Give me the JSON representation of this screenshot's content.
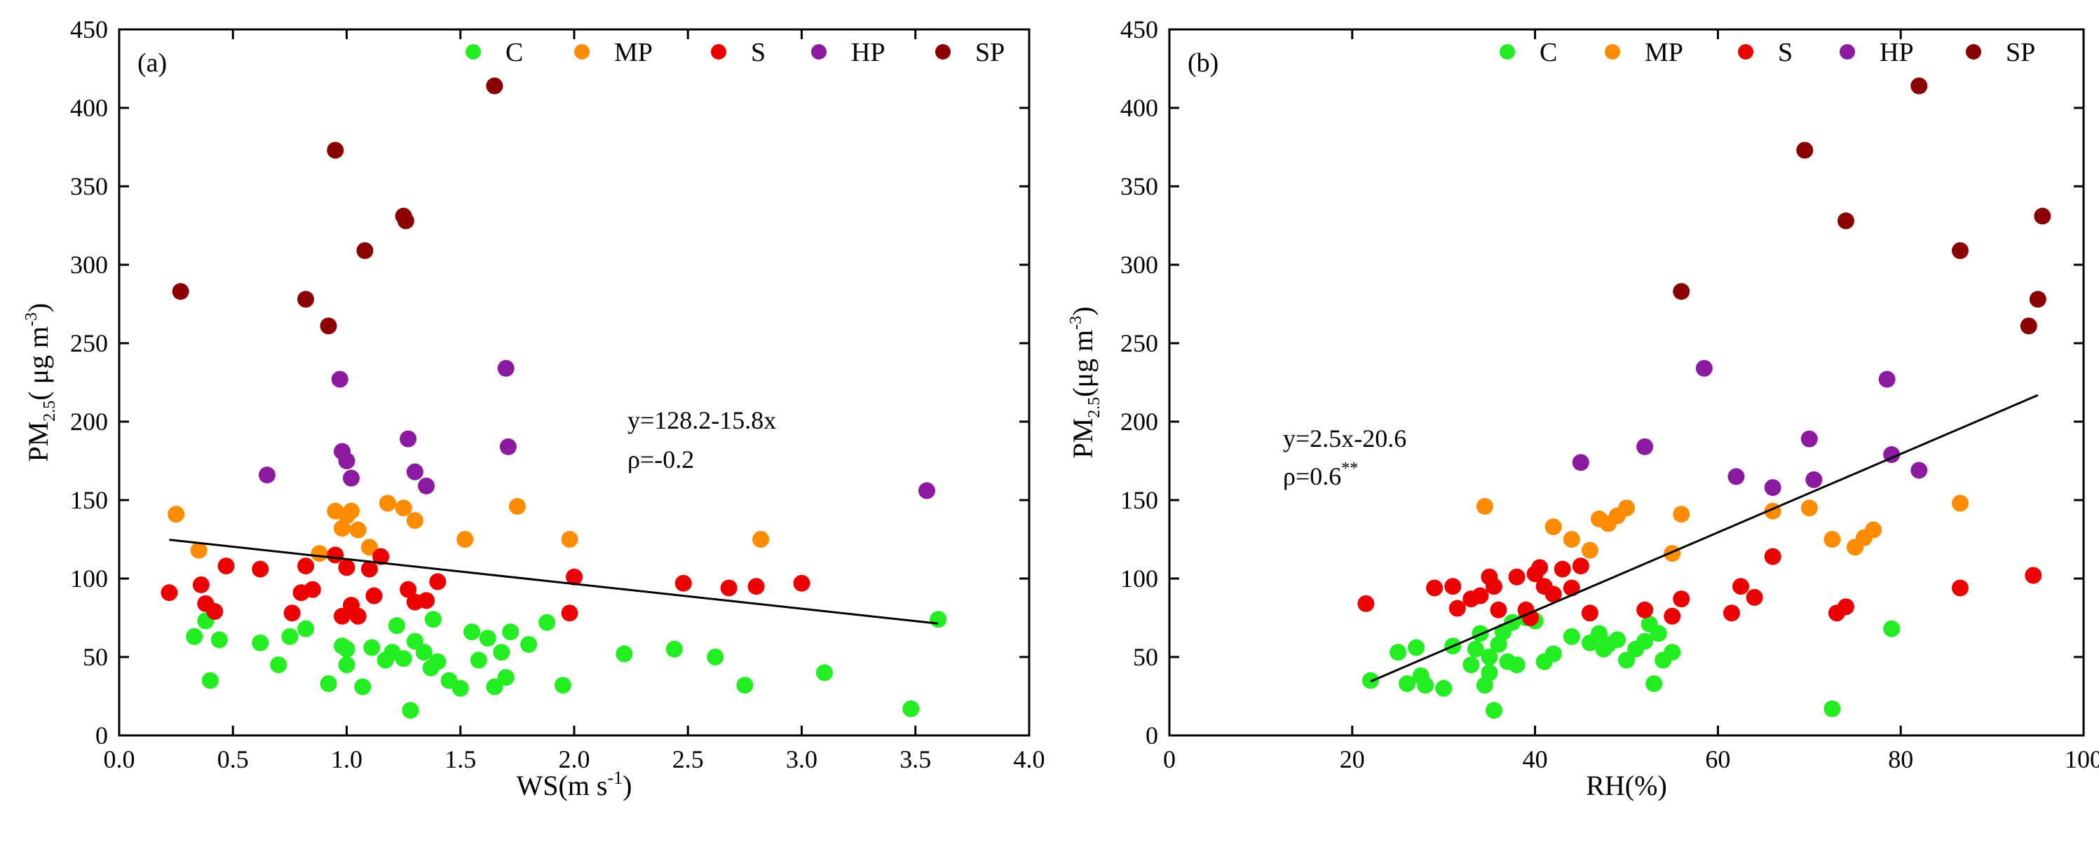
{
  "legend_colors": {
    "C": "#22ee22",
    "MP": "#ff8c00",
    "S": "#ee0000",
    "HP": "#8b1aa0",
    "SP": "#8b0000"
  },
  "chart_data": [
    {
      "type": "scatter",
      "panel_label": "(a)",
      "xlabel": "WS(m s",
      "xlabel_sup": "-1",
      "xlabel_tail": ")",
      "ylabel": "PM",
      "ylabel_sub": "2.5",
      "ylabel_mid": "( μg m",
      "ylabel_sup": "-3",
      "ylabel_tail": ")",
      "xlim": [
        0,
        4
      ],
      "ylim": [
        0,
        450
      ],
      "xticks": [
        "0.0",
        "0.5",
        "1.0",
        "1.5",
        "2.0",
        "2.5",
        "3.0",
        "3.5",
        "4.0"
      ],
      "xtick_values": [
        0,
        0.5,
        1,
        1.5,
        2,
        2.5,
        3,
        3.5,
        4
      ],
      "yticks": [
        "0",
        "50",
        "100",
        "150",
        "200",
        "250",
        "300",
        "350",
        "400",
        "450"
      ],
      "ytick_values": [
        0,
        50,
        100,
        150,
        200,
        250,
        300,
        350,
        400,
        450
      ],
      "legend": [
        "C",
        "MP",
        "S",
        "HP",
        "SP"
      ],
      "annotation": {
        "equation": "y=128.2-15.8x",
        "rho": "ρ=-0.2",
        "rho_sup": ""
      },
      "fit_line": {
        "x": [
          0.22,
          3.6
        ],
        "y": [
          124.7,
          71.3
        ]
      },
      "series": [
        {
          "name": "C",
          "x": [
            0.33,
            0.38,
            0.4,
            0.44,
            0.62,
            0.7,
            0.75,
            0.82,
            0.92,
            0.98,
            1.0,
            1.0,
            1.07,
            1.11,
            1.17,
            1.2,
            1.22,
            1.25,
            1.28,
            1.3,
            1.34,
            1.37,
            1.38,
            1.4,
            1.45,
            1.5,
            1.55,
            1.58,
            1.62,
            1.65,
            1.68,
            1.7,
            1.72,
            1.8,
            1.88,
            1.95,
            2.22,
            2.44,
            2.62,
            2.75,
            3.1,
            3.48,
            3.6
          ],
          "y": [
            63,
            73,
            35,
            61,
            59,
            45,
            63,
            68,
            33,
            57,
            55,
            45,
            31,
            56,
            48,
            53,
            70,
            49,
            16,
            60,
            53,
            43,
            74,
            47,
            35,
            30,
            66,
            48,
            62,
            31,
            53,
            37,
            66,
            58,
            72,
            32,
            52,
            55,
            50,
            32,
            40,
            17,
            74
          ]
        },
        {
          "name": "MP",
          "x": [
            0.25,
            0.35,
            0.88,
            0.95,
            0.98,
            1.0,
            1.02,
            1.05,
            1.1,
            1.18,
            1.25,
            1.3,
            1.52,
            1.75,
            1.98,
            2.82
          ],
          "y": [
            141,
            118,
            116,
            143,
            132,
            140,
            143,
            131,
            120,
            148,
            145,
            137,
            125,
            146,
            125,
            125
          ]
        },
        {
          "name": "S",
          "x": [
            0.22,
            0.36,
            0.38,
            0.42,
            0.47,
            0.62,
            0.76,
            0.8,
            0.82,
            0.85,
            0.95,
            0.98,
            1.0,
            1.02,
            1.05,
            1.1,
            1.12,
            1.15,
            1.27,
            1.3,
            1.35,
            1.4,
            1.98,
            2.0,
            2.48,
            2.68,
            2.8,
            3.0
          ],
          "y": [
            91,
            96,
            84,
            79,
            108,
            106,
            78,
            91,
            108,
            93,
            115,
            76,
            107,
            83,
            76,
            106,
            89,
            114,
            93,
            85,
            86,
            98,
            78,
            101,
            97,
            94,
            95,
            97
          ]
        },
        {
          "name": "HP",
          "x": [
            0.65,
            0.97,
            0.98,
            1.0,
            1.02,
            1.27,
            1.3,
            1.35,
            1.7,
            1.71,
            3.55
          ],
          "y": [
            166,
            227,
            181,
            175,
            164,
            189,
            168,
            159,
            234,
            184,
            156
          ]
        },
        {
          "name": "SP",
          "x": [
            0.27,
            0.82,
            0.92,
            0.95,
            1.08,
            1.25,
            1.26,
            1.65
          ],
          "y": [
            283,
            278,
            261,
            373,
            309,
            331,
            328,
            414
          ]
        }
      ]
    },
    {
      "type": "scatter",
      "panel_label": "(b)",
      "xlabel": "RH(%)",
      "xlabel_sup": "",
      "xlabel_tail": "",
      "ylabel": "PM",
      "ylabel_sub": "2.5",
      "ylabel_mid": "(μg m",
      "ylabel_sup": "-3",
      "ylabel_tail": ")",
      "xlim": [
        0,
        100
      ],
      "ylim": [
        0,
        450
      ],
      "xticks": [
        "0",
        "20",
        "40",
        "60",
        "80",
        "100"
      ],
      "xtick_values": [
        0,
        20,
        40,
        60,
        80,
        100
      ],
      "yticks": [
        "0",
        "50",
        "100",
        "150",
        "200",
        "250",
        "300",
        "350",
        "400",
        "450"
      ],
      "ytick_values": [
        0,
        50,
        100,
        150,
        200,
        250,
        300,
        350,
        400,
        450
      ],
      "legend": [
        "C",
        "MP",
        "S",
        "HP",
        "SP"
      ],
      "annotation": {
        "equation": "y=2.5x-20.6",
        "rho": "ρ=0.6",
        "rho_sup": "**"
      },
      "fit_line": {
        "x": [
          22,
          95
        ],
        "y": [
          34.4,
          216.9
        ]
      },
      "series": [
        {
          "name": "C",
          "x": [
            22,
            25,
            26,
            27,
            27.5,
            28,
            30,
            31,
            33,
            33.5,
            34,
            34.5,
            35,
            35,
            35.5,
            36,
            36.5,
            37,
            37.5,
            38,
            39,
            40,
            41,
            42,
            44,
            46,
            47,
            47.5,
            48,
            49,
            50,
            51,
            52,
            52.5,
            53,
            53.5,
            54,
            55,
            72.5,
            79
          ],
          "y": [
            35,
            53,
            33,
            56,
            38,
            32,
            30,
            57,
            45,
            55,
            65,
            32,
            40,
            50,
            16,
            58,
            66,
            47,
            72,
            45,
            75,
            73,
            47,
            52,
            63,
            59,
            65,
            55,
            58,
            61,
            48,
            55,
            60,
            71,
            33,
            65,
            48,
            53,
            17,
            68
          ]
        },
        {
          "name": "MP",
          "x": [
            34.5,
            44,
            42,
            46,
            47,
            48,
            49,
            50,
            55,
            56,
            66,
            70,
            72.5,
            75,
            76,
            77,
            86.5
          ],
          "y": [
            146,
            125,
            133,
            118,
            138,
            135,
            140,
            145,
            116,
            141,
            143,
            145,
            125,
            120,
            126,
            131,
            148
          ]
        },
        {
          "name": "S",
          "x": [
            21.5,
            29,
            31,
            31.5,
            33,
            34,
            35,
            35.5,
            36,
            38,
            39,
            39.5,
            40,
            40.5,
            41,
            42,
            43,
            44,
            45,
            46,
            52,
            55,
            56,
            61.5,
            62.5,
            64,
            66,
            73,
            74,
            86.5,
            94.5
          ],
          "y": [
            84,
            94,
            95,
            81,
            87,
            89,
            101,
            95,
            80,
            101,
            80,
            75,
            103,
            107,
            95,
            90,
            106,
            94,
            108,
            78,
            80,
            76,
            87,
            78,
            95,
            88,
            114,
            78,
            82,
            94,
            102
          ]
        },
        {
          "name": "HP",
          "x": [
            45,
            52,
            58.5,
            62,
            66,
            70,
            70.5,
            78.5,
            79,
            82
          ],
          "y": [
            174,
            184,
            234,
            165,
            158,
            189,
            163,
            227,
            179,
            169
          ]
        },
        {
          "name": "SP",
          "x": [
            56,
            69.5,
            74,
            82,
            86.5,
            94,
            95,
            95.5
          ],
          "y": [
            283,
            373,
            328,
            414,
            309,
            261,
            278,
            331
          ]
        }
      ]
    }
  ]
}
